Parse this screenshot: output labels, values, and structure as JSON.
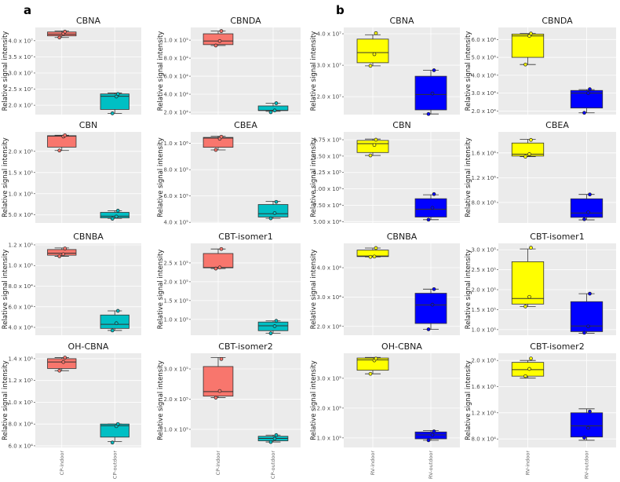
{
  "panel_labels": [
    "a",
    "b"
  ],
  "colors": {
    "CP-indoor": "#F8766D",
    "CP-outdoor": "#00BFC4",
    "RV-indoor": "#FFFF00",
    "RV-outdoor": "#0000FF",
    "panel_bg": "#EBEBEB"
  },
  "chart_data": [
    {
      "type": "box",
      "panel": "a",
      "title": "CBNA",
      "ylabel": "Relative signal intensity",
      "ylim": [
        17100000.0,
        44100000.0
      ],
      "yticks": [
        20000000.0,
        25000000.0,
        30000000.0,
        35000000.0,
        40000000.0
      ],
      "ytick_labels": [
        "2.0 x 10⁷",
        "2.5 x 10⁷",
        "3.0 x 10⁷",
        "3.5 x 10⁷",
        "4.0 x 10⁷"
      ],
      "categories": [
        "CP-indoor",
        "CP-outdoor"
      ],
      "boxes": [
        {
          "min": 41000000.0,
          "q1": 41500000.0,
          "median": 42000000.0,
          "q3": 42700000.0,
          "max": 43000000.0,
          "points": [
            41000000.0,
            42200000.0,
            42800000.0
          ]
        },
        {
          "min": 17500000.0,
          "q1": 18700000.0,
          "median": 22800000.0,
          "q3": 23500000.0,
          "max": 23800000.0,
          "points": [
            17500000.0,
            22700000.0,
            23500000.0
          ]
        }
      ]
    },
    {
      "type": "box",
      "panel": "a",
      "title": "CBNDA",
      "ylabel": "Relative signal intensity",
      "ylim": [
        17400.0,
        114000.0
      ],
      "yticks": [
        20000.0,
        40000.0,
        60000.0,
        80000.0,
        100000.0
      ],
      "ytick_labels": [
        "2.0 x 10⁴",
        "4.0 x 10⁴",
        "6.0 x 10⁴",
        "8.0 x 10⁴",
        "1.0 x 10⁵"
      ],
      "categories": [
        "CP-indoor",
        "CP-outdoor"
      ],
      "boxes": [
        {
          "min": 94000.0,
          "q1": 95000.0,
          "median": 99000.0,
          "q3": 107000.0,
          "max": 110000.0,
          "points": [
            94000.0,
            99000.0,
            110000.0
          ]
        },
        {
          "min": 21000.0,
          "q1": 22000.0,
          "median": 22000.0,
          "q3": 27000.0,
          "max": 30000.0,
          "points": [
            20000.0,
            22000.0,
            30000.0
          ]
        }
      ]
    },
    {
      "type": "box",
      "panel": "b",
      "title": "CBNA",
      "ylabel": "Relative signal intensity",
      "ylim": [
        14300000.0,
        42000000.0
      ],
      "yticks": [
        20000000.0,
        30000000.0,
        40000000.0
      ],
      "ytick_labels": [
        "2.0 x 10⁷",
        "3.0 x 10⁷",
        "4.0 x 10⁷"
      ],
      "categories": [
        "RV-indoor",
        "RV-outdoor"
      ],
      "boxes": [
        {
          "min": 29800000.0,
          "q1": 30800000.0,
          "median": 34000000.0,
          "q3": 38300000.0,
          "max": 39700000.0,
          "points": [
            29800000.0,
            33500000.0,
            40200000.0
          ]
        },
        {
          "min": 14500000.0,
          "q1": 15800000.0,
          "median": 20700000.0,
          "q3": 26500000.0,
          "max": 28400000.0,
          "points": [
            14500000.0,
            21000000.0,
            28400000.0
          ]
        }
      ]
    },
    {
      "type": "box",
      "panel": "b",
      "title": "CBNDA",
      "ylabel": "Relative signal intensity",
      "ylim": [
        18000.0,
        66700.0
      ],
      "yticks": [
        20000.0,
        30000.0,
        40000.0,
        50000.0,
        60000.0
      ],
      "ytick_labels": [
        "2.0 x 10⁴",
        "3.0 x 10⁴",
        "4.0 x 10⁴",
        "5.0 x 10⁴",
        "6.0 x 10⁴"
      ],
      "categories": [
        "RV-indoor",
        "RV-outdoor"
      ],
      "boxes": [
        {
          "min": 46000.0,
          "q1": 50000.0,
          "median": 62000.0,
          "q3": 63000.0,
          "max": 63300.0,
          "points": [
            46000.0,
            62000.0,
            63300.0
          ]
        },
        {
          "min": 19000.0,
          "q1": 21700.0,
          "median": 30000.0,
          "q3": 31500.0,
          "max": 32000.0,
          "points": [
            19000.0,
            30000.0,
            32200.0
          ]
        }
      ]
    },
    {
      "type": "box",
      "panel": "a",
      "title": "CBN",
      "ylabel": "Relative signal intensity",
      "ylim": [
        31000.0,
        246000.0
      ],
      "yticks": [
        50000.0,
        100000.0,
        150000.0,
        200000.0
      ],
      "ytick_labels": [
        "5.0 x 10⁴",
        "1.0 x 10⁵",
        "1.5 x 10⁵",
        "2.0 x 10⁵"
      ],
      "categories": [
        "CP-indoor",
        "CP-outdoor"
      ],
      "boxes": [
        {
          "min": 202000.0,
          "q1": 210000.0,
          "median": 236000.0,
          "q3": 237000.0,
          "max": 238000.0,
          "points": [
            202000.0,
            235000.0,
            238000.0
          ]
        },
        {
          "min": 42000.0,
          "q1": 43000.0,
          "median": 47000.0,
          "q3": 56000.0,
          "max": 60000.0,
          "points": [
            41000.0,
            46000.0,
            60000.0
          ]
        }
      ]
    },
    {
      "type": "box",
      "panel": "a",
      "title": "CBEA",
      "ylabel": "Relative signal intensity",
      "ylim": [
        395000.0,
        1087000.0
      ],
      "yticks": [
        400000.0,
        600000.0,
        800000.0,
        1000000.0
      ],
      "ytick_labels": [
        "4.0 x 10⁵",
        "6.0 x 10⁵",
        "8.0 x 10⁵",
        "1.0 x 10⁶"
      ],
      "categories": [
        "CP-indoor",
        "CP-outdoor"
      ],
      "boxes": [
        {
          "min": 950000.0,
          "q1": 970000.0,
          "median": 1040000.0,
          "q3": 1045000.0,
          "max": 1055000.0,
          "points": [
            950000.0,
            1035000.0,
            1050000.0
          ]
        },
        {
          "min": 430000.0,
          "q1": 440000.0,
          "median": 465000.0,
          "q3": 535000.0,
          "max": 560000.0,
          "points": [
            430000.0,
            470000.0,
            555000.0
          ]
        }
      ]
    },
    {
      "type": "box",
      "panel": "b",
      "title": "CBN",
      "ylabel": "Relative signal intensity",
      "ylim": [
        48000.0,
        187000.0
      ],
      "yticks": [
        50000.0,
        75000.0,
        100000.0,
        125000.0,
        150000.0,
        175000.0
      ],
      "ytick_labels": [
        "5.00 x 10⁴",
        "7.50 x 10⁴",
        "1.00 x 10⁵",
        "1.25 x 10⁵",
        "1.50 x 10⁵",
        "1.75 x 10⁵"
      ],
      "categories": [
        "RV-indoor",
        "RV-outdoor"
      ],
      "boxes": [
        {
          "min": 151000.0,
          "q1": 155500.0,
          "median": 169000.0,
          "q3": 174000.0,
          "max": 176000.0,
          "points": [
            151000.0,
            167000.0,
            175000.0
          ]
        },
        {
          "min": 53000.0,
          "q1": 57000.0,
          "median": 69000.0,
          "q3": 85000.0,
          "max": 91000.0,
          "points": [
            53000.0,
            71000.0,
            92000.0
          ]
        }
      ]
    },
    {
      "type": "box",
      "panel": "b",
      "title": "CBEA",
      "ylabel": "Relative signal intensity",
      "ylim": [
        470000.0,
        1940000.0
      ],
      "yticks": [
        800000.0,
        1200000.0,
        1600000.0
      ],
      "ytick_labels": [
        "8.0 x 10⁵",
        "1.2 x 10⁶",
        "1.6 x 10⁶"
      ],
      "categories": [
        "RV-indoor",
        "RV-outdoor"
      ],
      "boxes": [
        {
          "min": 1540000.0,
          "q1": 1550000.0,
          "median": 1580000.0,
          "q3": 1760000.0,
          "max": 1820000.0,
          "points": [
            1540000.0,
            1580000.0,
            1810000.0
          ]
        },
        {
          "min": 520000.0,
          "q1": 560000.0,
          "median": 630000.0,
          "q3": 860000.0,
          "max": 930000.0,
          "points": [
            530000.0,
            640000.0,
            930000.0
          ]
        }
      ]
    },
    {
      "type": "box",
      "panel": "a",
      "title": "CBNBA",
      "ylabel": "Relative signal intensity",
      "ylim": [
        32400.0,
        121500.0
      ],
      "yticks": [
        40000.0,
        60000.0,
        80000.0,
        100000.0,
        120000.0
      ],
      "ytick_labels": [
        "4.0 x 10⁴",
        "6.0 x 10⁴",
        "8.0 x 10⁴",
        "1.0 x 10⁵",
        "1.2 x 10⁵"
      ],
      "categories": [
        "CP-indoor",
        "CP-outdoor"
      ],
      "boxes": [
        {
          "min": 109000.0,
          "q1": 110000.0,
          "median": 112000.0,
          "q3": 115500.0,
          "max": 117000.0,
          "points": [
            109000.0,
            111000.0,
            116500.0
          ]
        },
        {
          "min": 37000.0,
          "q1": 39000.0,
          "median": 43000.0,
          "q3": 52000.0,
          "max": 56000.0,
          "points": [
            37000.0,
            44000.0,
            56000.0
          ]
        }
      ]
    },
    {
      "type": "box",
      "panel": "a",
      "title": "CBT-isomer1",
      "ylabel": "Relative signal intensity",
      "ylim": [
        58000.0,
        302000.0
      ],
      "yticks": [
        100000.0,
        150000.0,
        200000.0,
        250000.0
      ],
      "ytick_labels": [
        "1.0 x 10⁵",
        "1.5 x 10⁵",
        "2.0 x 10⁵",
        "2.5 x 10⁵"
      ],
      "categories": [
        "CP-indoor",
        "CP-outdoor"
      ],
      "boxes": [
        {
          "min": 235000.0,
          "q1": 237000.0,
          "median": 238000.0,
          "q3": 275000.0,
          "max": 287000.0,
          "points": [
            235000.0,
            238000.0,
            287000.0
          ]
        },
        {
          "min": 63000.0,
          "q1": 70000.0,
          "median": 83000.0,
          "q3": 93000.0,
          "max": 96000.0,
          "points": [
            63000.0,
            82000.0,
            96000.0
          ]
        }
      ]
    },
    {
      "type": "box",
      "panel": "b",
      "title": "CBNBA",
      "ylabel": "Relative signal intensity",
      "ylim": [
        17000.0,
        48300.0
      ],
      "yticks": [
        20000.0,
        30000.0,
        40000.0
      ],
      "ytick_labels": [
        "2.0 x 10⁴",
        "3.0 x 10⁴",
        "4.0 x 10⁴"
      ],
      "categories": [
        "RV-indoor",
        "RV-outdoor"
      ],
      "boxes": [
        {
          "min": 43700.0,
          "q1": 43800.0,
          "median": 44000.0,
          "q3": 46000.0,
          "max": 46700.0,
          "points": [
            43700.0,
            43800.0,
            46700.0
          ]
        },
        {
          "min": 19000.0,
          "q1": 21000.0,
          "median": 27300.0,
          "q3": 31300.0,
          "max": 32700.0,
          "points": [
            19000.0,
            27400.0,
            32700.0
          ]
        }
      ]
    },
    {
      "type": "box",
      "panel": "b",
      "title": "CBT-isomer1",
      "ylabel": "Relative signal intensity",
      "ylim": [
        86000.0,
        316000.0
      ],
      "yticks": [
        100000.0,
        150000.0,
        200000.0,
        250000.0,
        300000.0
      ],
      "ytick_labels": [
        "1.0 x 10⁵",
        "1.5 x 10⁵",
        "2.0 x 10⁵",
        "2.5 x 10⁵",
        "3.0 x 10⁵"
      ],
      "categories": [
        "RV-indoor",
        "RV-outdoor"
      ],
      "boxes": [
        {
          "min": 158000.0,
          "q1": 164000.0,
          "median": 178000.0,
          "q3": 270000.0,
          "max": 302000.0,
          "points": [
            158000.0,
            182000.0,
            305000.0
          ]
        },
        {
          "min": 91000.0,
          "q1": 95000.0,
          "median": 109000.0,
          "q3": 170000.0,
          "max": 190000.0,
          "points": [
            92000.0,
            108000.0,
            190000.0
          ]
        }
      ]
    },
    {
      "type": "box",
      "panel": "a",
      "title": "OH-CBNA",
      "ylabel": "Relative signal intensity",
      "ylim": [
        58500.0,
        145000.0
      ],
      "yticks": [
        60000.0,
        80000.0,
        100000.0,
        120000.0,
        140000.0
      ],
      "ytick_labels": [
        "6.0 x 10⁴",
        "8.0 x 10⁴",
        "1.0 x 10⁵",
        "1.2 x 10⁵",
        "1.4 x 10⁵"
      ],
      "categories": [
        "CP-indoor",
        "CP-outdoor"
      ],
      "boxes": [
        {
          "min": 129000.0,
          "q1": 131000.0,
          "median": 137000.0,
          "q3": 140000.0,
          "max": 141000.0,
          "points": [
            129000.0,
            137000.0,
            141000.0
          ]
        },
        {
          "min": 64000.0,
          "q1": 68000.0,
          "median": 78500.0,
          "q3": 80000.0,
          "max": 80000.0,
          "points": [
            63000.0,
            78000.0,
            80000.0
          ]
        }
      ]
    },
    {
      "type": "box",
      "panel": "a",
      "title": "CBT-isomer2",
      "ylabel": "Relative signal intensity",
      "ylim": [
        40000.0,
        352000.0
      ],
      "yticks": [
        100000.0,
        200000.0,
        300000.0
      ],
      "ytick_labels": [
        "1.0 x 10⁵",
        "2.0 x 10⁵",
        "3.0 x 10⁵"
      ],
      "categories": [
        "CP-indoor",
        "CP-outdoor"
      ],
      "boxes": [
        {
          "min": 205000.0,
          "q1": 210000.0,
          "median": 225000.0,
          "q3": 308000.0,
          "max": 338000.0,
          "points": [
            205000.0,
            227000.0,
            333000.0
          ]
        },
        {
          "min": 58000.0,
          "q1": 62000.0,
          "median": 70000.0,
          "q3": 77000.0,
          "max": 81000.0,
          "points": [
            58000.0,
            69000.0,
            81000.0
          ]
        }
      ]
    },
    {
      "type": "box",
      "panel": "b",
      "title": "OH-CBNA",
      "ylabel": "Relative signal intensity",
      "ylim": [
        68000.0,
        384000.0
      ],
      "yticks": [
        100000.0,
        200000.0,
        300000.0
      ],
      "ytick_labels": [
        "1.0 x 10⁵",
        "2.0 x 10⁵",
        "3.0 x 10⁵"
      ],
      "categories": [
        "RV-indoor",
        "RV-outdoor"
      ],
      "boxes": [
        {
          "min": 315000.0,
          "q1": 327000.0,
          "median": 362000.0,
          "q3": 368000.0,
          "max": 370000.0,
          "points": [
            315000.0,
            360000.0,
            366000.0
          ]
        },
        {
          "min": 92000.0,
          "q1": 97000.0,
          "median": 110000.0,
          "q3": 120000.0,
          "max": 125000.0,
          "points": [
            92000.0,
            110000.0,
            122000.0
          ]
        }
      ]
    },
    {
      "type": "box",
      "panel": "b",
      "title": "CBT-isomer2",
      "ylabel": "Relative signal intensity",
      "ylim": [
        67000.0,
        211000.0
      ],
      "yticks": [
        80000.0,
        120000.0,
        160000.0,
        200000.0
      ],
      "ytick_labels": [
        "8.0 x 10⁴",
        "1.2 x 10⁵",
        "1.6 x 10⁵",
        "2.0 x 10⁵"
      ],
      "categories": [
        "RV-indoor",
        "RV-outdoor"
      ],
      "boxes": [
        {
          "min": 173000.0,
          "q1": 176000.0,
          "median": 186000.0,
          "q3": 197000.0,
          "max": 200000.0,
          "points": [
            176000.0,
            187000.0,
            203000.0
          ]
        },
        {
          "min": 78000.0,
          "q1": 83000.0,
          "median": 100000.0,
          "q3": 120000.0,
          "max": 126000.0,
          "points": [
            82000.0,
            97000.0,
            122000.0
          ]
        }
      ]
    }
  ]
}
